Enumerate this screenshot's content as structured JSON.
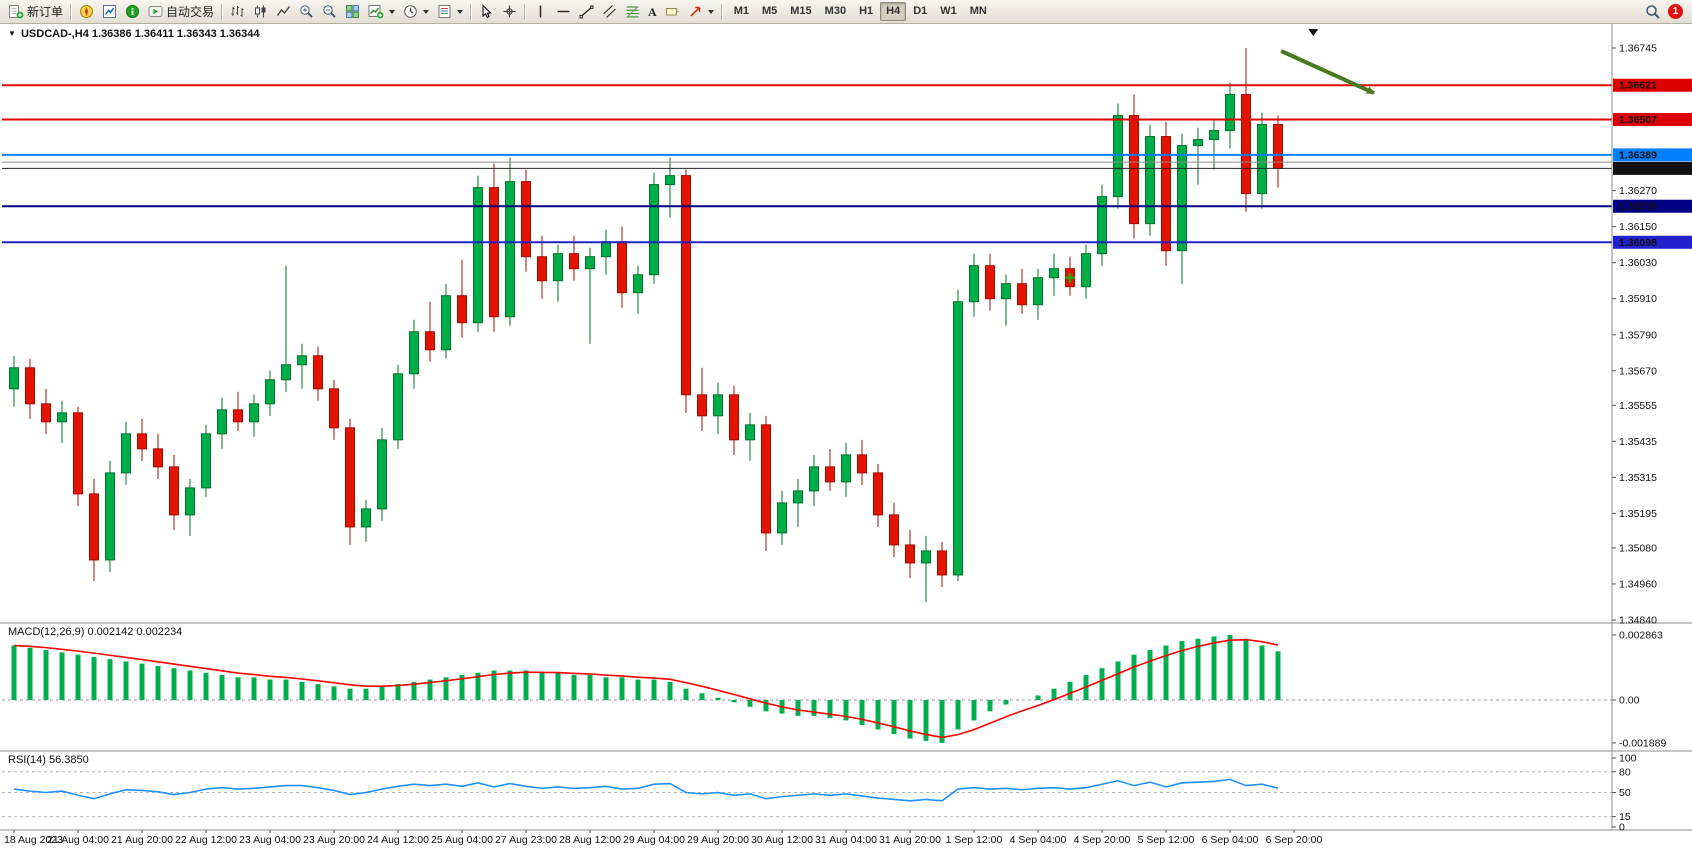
{
  "toolbar": {
    "new_order_label": "新订单",
    "autotrading_label": "自动交易",
    "timeframes": [
      "M1",
      "M5",
      "M15",
      "M30",
      "H1",
      "H4",
      "D1",
      "W1",
      "MN"
    ],
    "active_timeframe": "H4",
    "notification_count": "1"
  },
  "chart": {
    "title_symbol": "USDCAD-,H4",
    "title_ohlc": "1.36386 1.36411 1.36343 1.36344"
  },
  "chart_data": {
    "type": "candlestick",
    "symbol": "USDCAD-",
    "timeframe": "H4",
    "colors": {
      "up": "#00ad46",
      "up_border": "#00702d",
      "down": "#e51400",
      "down_border": "#9c0d00"
    },
    "y_axis": {
      "min": 1.3484,
      "max": 1.36745,
      "ticks": [
        "1.36745",
        "1.36270",
        "1.36150",
        "1.36030",
        "1.35910",
        "1.35790",
        "1.35670",
        "1.35555",
        "1.35435",
        "1.35315",
        "1.35195",
        "1.35080",
        "1.34960",
        "1.34840"
      ]
    },
    "hlines": [
      {
        "label": "1.36621",
        "value": 1.36621,
        "color": "#dd0000",
        "width": 2
      },
      {
        "label": "1.36507",
        "value": 1.36507,
        "color": "#dd0000",
        "width": 2
      },
      {
        "label": "1.36389",
        "value": 1.36389,
        "color": "#0080ff",
        "width": 2
      },
      {
        "label": "1.36344",
        "value": 1.36344,
        "color": "#222222",
        "width": 1,
        "badge": "#111111"
      },
      {
        "label": "1.36218",
        "value": 1.36218,
        "color": "#000080",
        "width": 2
      },
      {
        "label": "1.36098",
        "value": 1.36098,
        "color": "#2222cc",
        "width": 2
      },
      {
        "label": "",
        "value": 1.36365,
        "color": "#8a8a8a",
        "width": 1
      }
    ],
    "x_labels": [
      "18 Aug 2023",
      "21 Aug 04:00",
      "21 Aug 20:00",
      "22 Aug 12:00",
      "23 Aug 04:00",
      "23 Aug 20:00",
      "24 Aug 12:00",
      "25 Aug 04:00",
      "27 Aug 23:00",
      "28 Aug 12:00",
      "29 Aug 04:00",
      "29 Aug 20:00",
      "30 Aug 12:00",
      "31 Aug 04:00",
      "31 Aug 20:00",
      "1 Sep 12:00",
      "4 Sep 04:00",
      "4 Sep 20:00",
      "5 Sep 12:00",
      "6 Sep 04:00",
      "6 Sep 20:00"
    ],
    "candles": [
      [
        1.3561,
        1.3572,
        1.3555,
        1.3568
      ],
      [
        1.3568,
        1.3571,
        1.3551,
        1.3556
      ],
      [
        1.3556,
        1.3561,
        1.3546,
        1.355
      ],
      [
        1.355,
        1.3557,
        1.3543,
        1.3553
      ],
      [
        1.3553,
        1.3555,
        1.3522,
        1.3526
      ],
      [
        1.3526,
        1.3531,
        1.3497,
        1.3504
      ],
      [
        1.3504,
        1.3537,
        1.35,
        1.3533
      ],
      [
        1.3533,
        1.355,
        1.3529,
        1.3546
      ],
      [
        1.3546,
        1.3551,
        1.3537,
        1.3541
      ],
      [
        1.3541,
        1.3546,
        1.3531,
        1.3535
      ],
      [
        1.3535,
        1.3539,
        1.3514,
        1.3519
      ],
      [
        1.3519,
        1.3531,
        1.3512,
        1.3528
      ],
      [
        1.3528,
        1.3549,
        1.3525,
        1.3546
      ],
      [
        1.3546,
        1.3558,
        1.3541,
        1.3554
      ],
      [
        1.3554,
        1.356,
        1.3547,
        1.355
      ],
      [
        1.355,
        1.3559,
        1.3545,
        1.3556
      ],
      [
        1.3556,
        1.3567,
        1.3552,
        1.3564
      ],
      [
        1.3564,
        1.3602,
        1.356,
        1.3569
      ],
      [
        1.3569,
        1.3576,
        1.3561,
        1.3572
      ],
      [
        1.3572,
        1.3575,
        1.3557,
        1.3561
      ],
      [
        1.3561,
        1.3564,
        1.3544,
        1.3548
      ],
      [
        1.3548,
        1.3551,
        1.3509,
        1.3515
      ],
      [
        1.3515,
        1.3524,
        1.351,
        1.3521
      ],
      [
        1.3521,
        1.3548,
        1.3517,
        1.3544
      ],
      [
        1.3544,
        1.3569,
        1.3541,
        1.3566
      ],
      [
        1.3566,
        1.3584,
        1.3561,
        1.358
      ],
      [
        1.358,
        1.359,
        1.357,
        1.3574
      ],
      [
        1.3574,
        1.3596,
        1.3571,
        1.3592
      ],
      [
        1.3592,
        1.3604,
        1.3578,
        1.3583
      ],
      [
        1.3583,
        1.3632,
        1.358,
        1.3628
      ],
      [
        1.3628,
        1.3636,
        1.358,
        1.3585
      ],
      [
        1.3585,
        1.3638,
        1.3582,
        1.363
      ],
      [
        1.363,
        1.3634,
        1.36,
        1.3605
      ],
      [
        1.3605,
        1.3612,
        1.3591,
        1.3597
      ],
      [
        1.3597,
        1.3609,
        1.359,
        1.3606
      ],
      [
        1.3606,
        1.3612,
        1.3597,
        1.3601
      ],
      [
        1.3601,
        1.3608,
        1.3576,
        1.3605
      ],
      [
        1.3605,
        1.3614,
        1.3599,
        1.361
      ],
      [
        1.361,
        1.3615,
        1.3588,
        1.3593
      ],
      [
        1.3593,
        1.3602,
        1.3586,
        1.3599
      ],
      [
        1.3599,
        1.3633,
        1.3596,
        1.3629
      ],
      [
        1.3629,
        1.3638,
        1.3618,
        1.3632
      ],
      [
        1.3632,
        1.3634,
        1.3553,
        1.3559
      ],
      [
        1.3559,
        1.3568,
        1.3547,
        1.3552
      ],
      [
        1.3552,
        1.3563,
        1.3546,
        1.3559
      ],
      [
        1.3559,
        1.3562,
        1.3539,
        1.3544
      ],
      [
        1.3544,
        1.3553,
        1.3537,
        1.3549
      ],
      [
        1.3549,
        1.3552,
        1.3507,
        1.3513
      ],
      [
        1.3513,
        1.3527,
        1.3509,
        1.3523
      ],
      [
        1.3523,
        1.3531,
        1.3515,
        1.3527
      ],
      [
        1.3527,
        1.3539,
        1.3522,
        1.3535
      ],
      [
        1.3535,
        1.3541,
        1.3527,
        1.353
      ],
      [
        1.353,
        1.3543,
        1.3525,
        1.3539
      ],
      [
        1.3539,
        1.3544,
        1.3529,
        1.3533
      ],
      [
        1.3533,
        1.3536,
        1.3515,
        1.3519
      ],
      [
        1.3519,
        1.3523,
        1.3505,
        1.3509
      ],
      [
        1.3509,
        1.3514,
        1.3498,
        1.3503
      ],
      [
        1.3503,
        1.3512,
        1.349,
        1.3507
      ],
      [
        1.3507,
        1.351,
        1.3495,
        1.3499
      ],
      [
        1.3499,
        1.3594,
        1.3497,
        1.359
      ],
      [
        1.359,
        1.3606,
        1.3585,
        1.3602
      ],
      [
        1.3602,
        1.3606,
        1.3587,
        1.3591
      ],
      [
        1.3591,
        1.3599,
        1.3582,
        1.3596
      ],
      [
        1.3596,
        1.3601,
        1.3586,
        1.3589
      ],
      [
        1.3589,
        1.3601,
        1.3584,
        1.3598
      ],
      [
        1.3598,
        1.3606,
        1.3592,
        1.3601
      ],
      [
        1.3601,
        1.3605,
        1.3592,
        1.3595
      ],
      [
        1.3595,
        1.3609,
        1.3591,
        1.3606
      ],
      [
        1.3606,
        1.3629,
        1.3602,
        1.3625
      ],
      [
        1.3625,
        1.3656,
        1.3621,
        1.3652
      ],
      [
        1.3652,
        1.3659,
        1.3611,
        1.3616
      ],
      [
        1.3616,
        1.3649,
        1.3612,
        1.3645
      ],
      [
        1.3645,
        1.365,
        1.3602,
        1.3607
      ],
      [
        1.3607,
        1.3646,
        1.3596,
        1.3642
      ],
      [
        1.3642,
        1.3648,
        1.3629,
        1.3644
      ],
      [
        1.3644,
        1.3651,
        1.3634,
        1.3647
      ],
      [
        1.3647,
        1.3663,
        1.3641,
        1.3659
      ],
      [
        1.3659,
        1.36745,
        1.362,
        1.3626
      ],
      [
        1.3626,
        1.3653,
        1.3621,
        1.3649
      ],
      [
        1.3649,
        1.3652,
        1.3628,
        1.36344
      ]
    ],
    "macd": {
      "label": "MACD(12,26,9)",
      "values_text": "0.002142 0.002234",
      "hist_color": "#00b050",
      "signal_color": "#ff0000",
      "axis": [
        "0.002863",
        "0.00",
        "-0.001889"
      ],
      "histogram": [
        0.0024,
        0.0023,
        0.0022,
        0.0021,
        0.002,
        0.0019,
        0.0018,
        0.0017,
        0.0016,
        0.0015,
        0.0014,
        0.0013,
        0.0012,
        0.0011,
        0.001,
        0.001,
        0.0009,
        0.0009,
        0.0008,
        0.0007,
        0.0006,
        0.0005,
        0.0005,
        0.0006,
        0.0007,
        0.0008,
        0.0009,
        0.001,
        0.0011,
        0.0012,
        0.0013,
        0.0013,
        0.0013,
        0.0012,
        0.0012,
        0.0011,
        0.0011,
        0.001,
        0.001,
        0.0009,
        0.0009,
        0.0008,
        0.0005,
        0.0003,
        0.0001,
        -0.0001,
        -0.0003,
        -0.0005,
        -0.0006,
        -0.0007,
        -0.0007,
        -0.0008,
        -0.0009,
        -0.0011,
        -0.0013,
        -0.0015,
        -0.0017,
        -0.0018,
        -0.001889,
        -0.0013,
        -0.0009,
        -0.0005,
        -0.0002,
        0.0,
        0.0002,
        0.0005,
        0.0008,
        0.0011,
        0.0014,
        0.0017,
        0.002,
        0.0022,
        0.0024,
        0.0026,
        0.0027,
        0.0028,
        0.002863,
        0.0027,
        0.0024,
        0.002142
      ]
    },
    "rsi": {
      "label": "RSI(14)",
      "value_text": "56.3850",
      "line_color": "#1e90ff",
      "levels": [
        80,
        50,
        15
      ],
      "axis": [
        "100",
        "80",
        "50",
        "15",
        "0"
      ],
      "values": [
        55,
        52,
        50,
        52,
        46,
        41,
        48,
        54,
        53,
        51,
        47,
        50,
        55,
        57,
        55,
        56,
        58,
        60,
        60,
        57,
        53,
        47,
        50,
        55,
        59,
        62,
        60,
        62,
        59,
        64,
        58,
        63,
        59,
        56,
        58,
        56,
        57,
        59,
        55,
        56,
        62,
        63,
        50,
        48,
        50,
        46,
        48,
        41,
        44,
        46,
        48,
        46,
        48,
        45,
        42,
        40,
        38,
        40,
        38,
        55,
        57,
        55,
        56,
        54,
        56,
        57,
        55,
        57,
        62,
        67,
        60,
        65,
        58,
        64,
        65,
        66,
        69,
        60,
        62,
        56.4
      ]
    },
    "annotations": {
      "arrow": {
        "x1_bar": 79.2,
        "price1": 1.36735,
        "x2_bar": 85.0,
        "price2": 1.36595,
        "color": "#4a7a1f"
      },
      "plus_marker": {
        "bar": 66,
        "price": 1.3598,
        "color": "#00c000"
      },
      "top_marker_bar": 81.2
    }
  }
}
